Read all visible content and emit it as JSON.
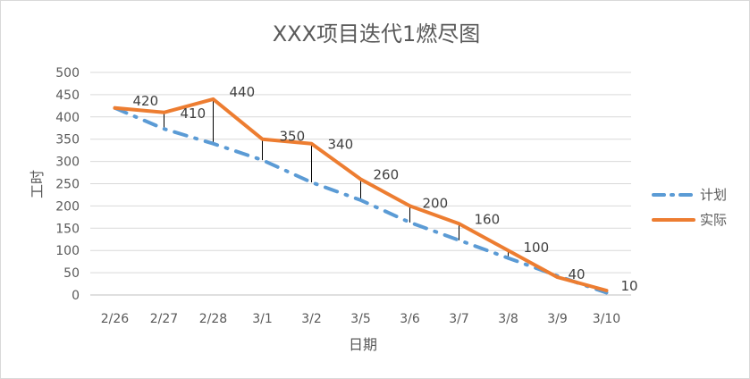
{
  "chart_data": {
    "type": "line",
    "title": "XXX项目迭代1燃尽图",
    "xlabel": "日期",
    "ylabel": "工时",
    "categories": [
      "2/26",
      "2/27",
      "2/28",
      "3/1",
      "3/2",
      "3/5",
      "3/6",
      "3/7",
      "3/8",
      "3/9",
      "3/10"
    ],
    "ylim": [
      0,
      500
    ],
    "yticks": [
      0,
      50,
      100,
      150,
      200,
      250,
      300,
      350,
      400,
      450,
      500
    ],
    "grid": true,
    "legend_position": "right",
    "series": [
      {
        "name": "计划",
        "style": "dash-dot",
        "color": "#5b9bd5",
        "values": [
          420,
          373,
          340,
          303,
          253,
          213,
          163,
          123,
          83,
          43,
          5
        ]
      },
      {
        "name": "实际",
        "style": "solid",
        "color": "#ed7d31",
        "values": [
          420,
          410,
          440,
          350,
          340,
          260,
          200,
          160,
          100,
          40,
          10
        ],
        "data_labels": [
          "420",
          "410",
          "440",
          "350",
          "340",
          "260",
          "200",
          "160",
          "100",
          "40",
          "10"
        ]
      }
    ],
    "drop_lines": true
  }
}
